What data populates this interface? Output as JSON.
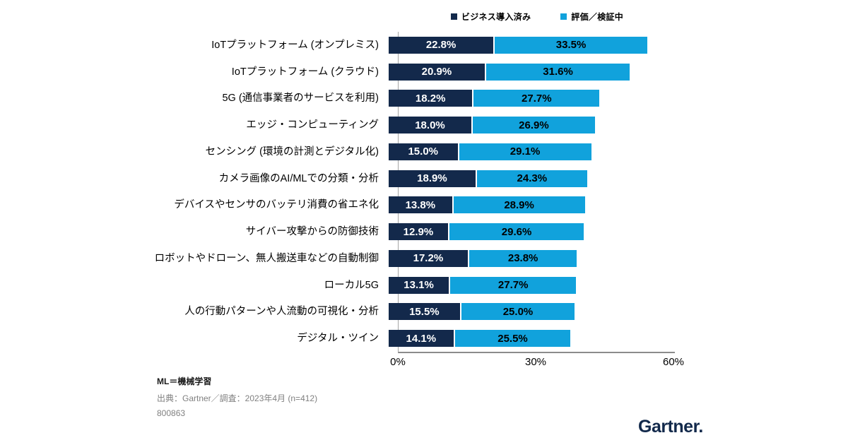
{
  "legend": {
    "items": [
      {
        "label": "ビジネス導入済み",
        "color": "#13294b"
      },
      {
        "label": "評価／検証中",
        "color": "#11a2dc"
      }
    ]
  },
  "chart_data": {
    "type": "bar",
    "orientation": "horizontal",
    "stacked": true,
    "title": "",
    "categories": [
      "IoTプラットフォーム (オンプレミス)",
      "IoTプラットフォーム (クラウド)",
      "5G (通信事業者のサービスを利用)",
      "エッジ・コンピューティング",
      "センシング (環境の計測とデジタル化)",
      "カメラ画像のAI/MLでの分類・分析",
      "デバイスやセンサのバッテリ消費の省エネ化",
      "サイバー攻撃からの防御技術",
      "ロボットやドローン、無人搬送車などの自動制御",
      "ローカル5G",
      "人の行動パターンや人流動の可視化・分析",
      "デジタル・ツイン"
    ],
    "series": [
      {
        "name": "ビジネス導入済み",
        "color": "#13294b",
        "label_color": "#ffffff",
        "values": [
          22.8,
          20.9,
          18.2,
          18.0,
          15.0,
          18.9,
          13.8,
          12.9,
          17.2,
          13.1,
          15.5,
          14.1
        ]
      },
      {
        "name": "評価／検証中",
        "color": "#11a2dc",
        "label_color": "#000000",
        "values": [
          33.5,
          31.6,
          27.7,
          26.9,
          29.1,
          24.3,
          28.9,
          29.6,
          23.8,
          27.7,
          25.0,
          25.5
        ]
      }
    ],
    "value_suffix": "%",
    "xlim": [
      0,
      60
    ],
    "x_ticks": [
      {
        "label": "0%",
        "value": 0
      },
      {
        "label": "30%",
        "value": 30
      },
      {
        "label": "60%",
        "value": 60
      }
    ],
    "legend_position": "top",
    "grid": false
  },
  "footer": {
    "note": "ML＝機械学習",
    "source": "出典：Gartner／調査：2023年4月 (n=412)",
    "doc_id": "800863"
  },
  "logo": {
    "text": "Gartner."
  }
}
